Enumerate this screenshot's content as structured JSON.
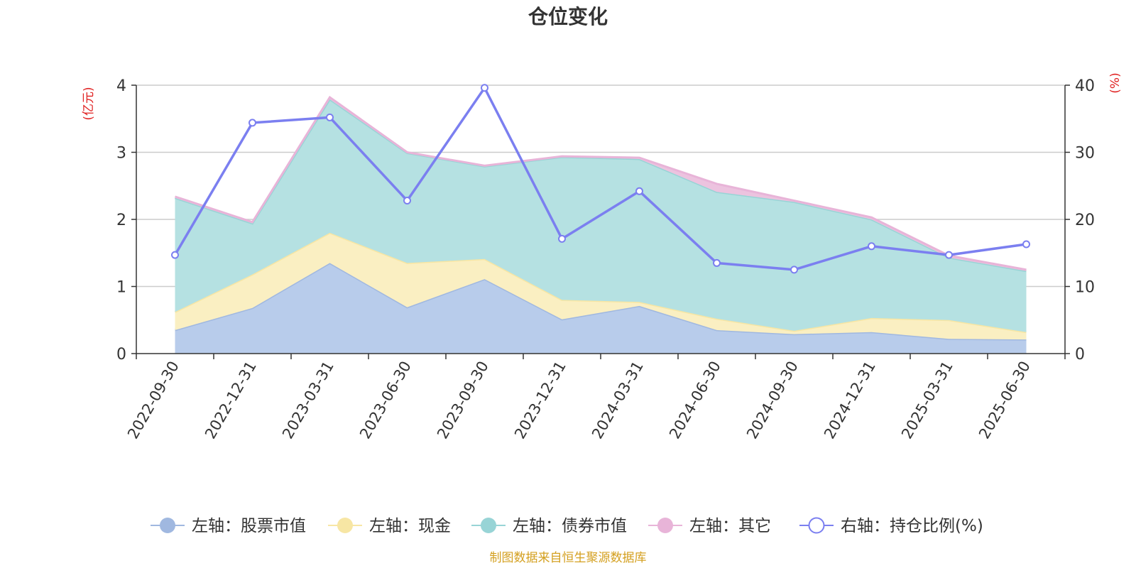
{
  "chart_data": {
    "type": "area",
    "title": "仓位变化",
    "y_left_unit": "(亿元)",
    "y_right_unit": "(%)",
    "ylim_left": [
      0,
      4
    ],
    "ylim_right": [
      0,
      40
    ],
    "yticks_left": [
      "0",
      "1",
      "2",
      "3",
      "4"
    ],
    "yticks_right": [
      "0",
      "10",
      "20",
      "30",
      "40"
    ],
    "grid": true,
    "stacked": true,
    "legend_position": "bottom",
    "categories": [
      "2022-09-30",
      "2022-12-31",
      "2023-03-31",
      "2023-06-30",
      "2023-09-30",
      "2023-12-31",
      "2024-03-31",
      "2024-06-30",
      "2024-09-30",
      "2024-12-31",
      "2025-03-31",
      "2025-06-30"
    ],
    "series": [
      {
        "name": "左轴：股票市值",
        "axis": "left",
        "color": "#a0b8e0",
        "fill": "#b8cceb",
        "values": [
          0.35,
          0.68,
          1.35,
          0.69,
          1.11,
          0.51,
          0.71,
          0.35,
          0.29,
          0.32,
          0.22,
          0.21
        ]
      },
      {
        "name": "左轴：现金",
        "axis": "left",
        "color": "#f7e6a4",
        "fill": "#faefc2",
        "values": [
          0.27,
          0.5,
          0.45,
          0.66,
          0.3,
          0.29,
          0.06,
          0.17,
          0.05,
          0.21,
          0.28,
          0.11
        ]
      },
      {
        "name": "左轴：债券市值",
        "axis": "left",
        "color": "#98d4d6",
        "fill": "#b5e1e2",
        "values": [
          1.7,
          0.76,
          1.99,
          1.64,
          1.38,
          2.13,
          2.13,
          1.89,
          1.92,
          1.47,
          0.93,
          0.91
        ]
      },
      {
        "name": "左轴：其它",
        "axis": "left",
        "color": "#e8b4d8",
        "fill": "#ecc3df",
        "values": [
          0.02,
          0.02,
          0.03,
          0.01,
          0.01,
          0.01,
          0.02,
          0.12,
          0.02,
          0.03,
          0.03,
          0.02
        ]
      },
      {
        "name": "右轴：持仓比例(%)",
        "axis": "right",
        "type": "line",
        "color": "#7b7ff0",
        "values": [
          14.7,
          34.4,
          35.2,
          22.8,
          39.6,
          17.1,
          24.2,
          13.5,
          12.5,
          16.0,
          14.7,
          16.3
        ]
      }
    ]
  },
  "source": "制图数据来自恒生聚源数据库"
}
